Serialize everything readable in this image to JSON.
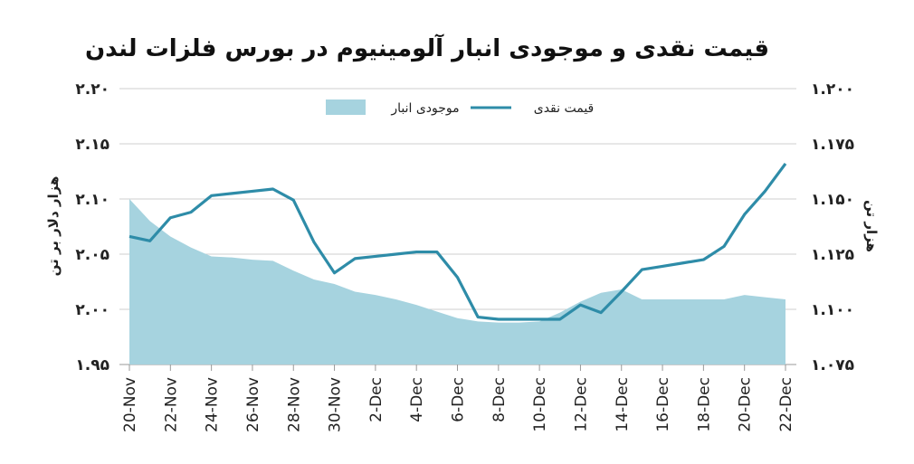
{
  "chart_data": {
    "type": "line",
    "title": "قیمت نقدی و موجودی انبار آلومینیوم در بورس فلزات لندن",
    "y_left_label": "هزار دلار بر تن",
    "y_right_label": "هزار تن",
    "y_left_range": [
      1.95,
      2.2
    ],
    "y_right_range": [
      1.075,
      1.2
    ],
    "y_left_ticks": [
      "۱.۹۵",
      "۲.۰۰",
      "۲.۰۵",
      "۲.۱۰",
      "۲.۱۵",
      "۲.۲۰"
    ],
    "y_right_ticks": [
      "۱.۰۷۵",
      "۱.۱۰۰",
      "۱.۱۲۵",
      "۱.۱۵۰",
      "۱.۱۷۵",
      "۱.۲۰۰"
    ],
    "y_left_tick_values": [
      1.95,
      2.0,
      2.05,
      2.1,
      2.15,
      2.2
    ],
    "y_right_tick_values": [
      1.075,
      1.1,
      1.125,
      1.15,
      1.175,
      1.2
    ],
    "x_ticks": [
      "20-Nov",
      "22-Nov",
      "24-Nov",
      "26-Nov",
      "28-Nov",
      "30-Nov",
      "2-Dec",
      "4-Dec",
      "6-Dec",
      "8-Dec",
      "10-Dec",
      "12-Dec",
      "14-Dec",
      "16-Dec",
      "18-Dec",
      "20-Dec",
      "22-Dec"
    ],
    "x_tick_days": [
      0,
      2,
      4,
      6,
      8,
      10,
      12,
      14,
      16,
      18,
      20,
      22,
      24,
      26,
      28,
      30,
      32
    ],
    "grid": "horizontal",
    "legend_position": "top-center",
    "series": [
      {
        "name": "قیمت نقدی",
        "type": "line",
        "axis": "left",
        "color": "#2e8ca8",
        "x": [
          0,
          1,
          2,
          3,
          4,
          5,
          6,
          7,
          8,
          9,
          10,
          11,
          12,
          13,
          14,
          15,
          16,
          17,
          18,
          19,
          20,
          21,
          22,
          23,
          24,
          25,
          26,
          27,
          28,
          29,
          30,
          31,
          32
        ],
        "y": [
          2.066,
          2.062,
          2.083,
          2.088,
          2.103,
          2.105,
          2.107,
          2.109,
          2.099,
          2.061,
          2.033,
          2.046,
          2.048,
          2.05,
          2.052,
          2.052,
          2.029,
          1.993,
          1.991,
          1.991,
          1.991,
          1.991,
          2.004,
          1.997,
          2.016,
          2.036,
          2.039,
          2.042,
          2.045,
          2.057,
          2.086,
          2.107,
          2.132
        ]
      },
      {
        "name": "موجودی انبار",
        "type": "area",
        "axis": "right",
        "color": "#a6d3df",
        "x": [
          0,
          1,
          2,
          3,
          4,
          5,
          6,
          7,
          8,
          9,
          10,
          11,
          12,
          13,
          14,
          15,
          16,
          17,
          18,
          19,
          20,
          21,
          22,
          23,
          24,
          25,
          26,
          27,
          28,
          29,
          30,
          31,
          32
        ],
        "y": [
          1.15,
          1.14,
          1.133,
          1.128,
          1.124,
          1.1235,
          1.1225,
          1.122,
          1.1175,
          1.1135,
          1.1115,
          1.108,
          1.1065,
          1.1045,
          1.102,
          1.099,
          1.096,
          1.0945,
          1.094,
          1.094,
          1.0945,
          1.0985,
          1.1035,
          1.1075,
          1.109,
          1.1045,
          1.1045,
          1.1045,
          1.1045,
          1.1045,
          1.1065,
          1.1055,
          1.1045
        ]
      }
    ]
  }
}
